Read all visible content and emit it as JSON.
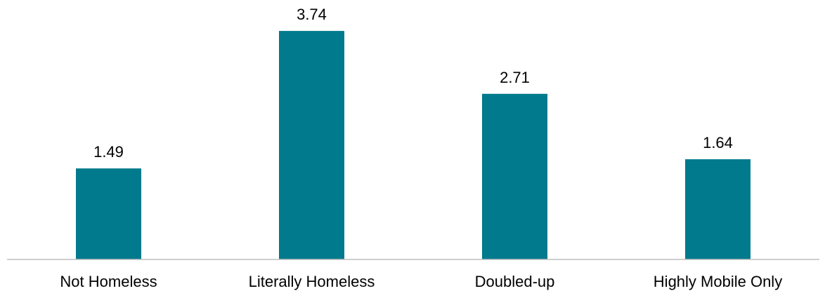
{
  "chart_data": {
    "type": "bar",
    "categories": [
      "Not Homeless",
      "Literally Homeless",
      "Doubled-up",
      "Highly Mobile Only"
    ],
    "values": [
      1.49,
      3.74,
      2.71,
      1.64
    ],
    "data_labels": [
      "1.49",
      "3.74",
      "2.71",
      "1.64"
    ],
    "title": "",
    "xlabel": "",
    "ylabel": "",
    "ylim": [
      0,
      4.2
    ],
    "grid": false,
    "legend": "none",
    "bar_color": "#007A8C",
    "axis_color": "#BFBFBF"
  }
}
